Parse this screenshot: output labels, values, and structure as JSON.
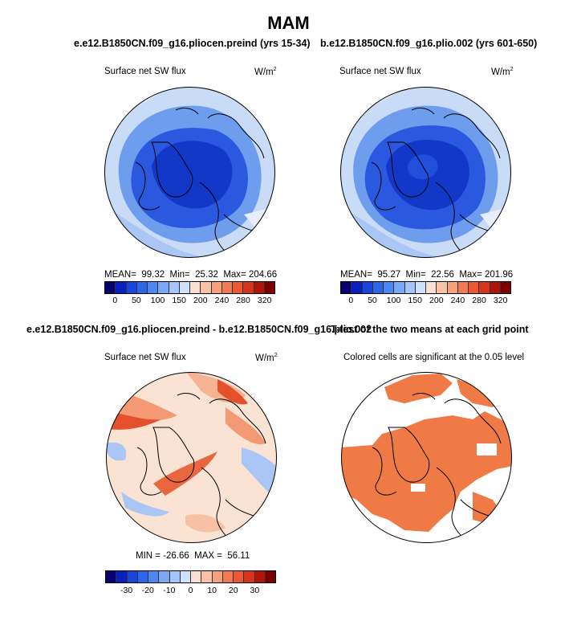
{
  "title": "MAM",
  "panels": [
    {
      "header": "e.e12.B1850CN.f09_g16.pliocen.preind (yrs 15-34)",
      "left_label": "Surface net SW flux",
      "units_base": "W/m",
      "units_sup": "2",
      "stats": {
        "mean_label": "MEAN=",
        "mean": "99.32",
        "min_label": "Min=",
        "min": "25.32",
        "max_label": "Max=",
        "max": "204.66"
      }
    },
    {
      "header": "b.e12.B1850CN.f09_g16.plio.002 (yrs 601-650)",
      "left_label": "Surface net SW flux",
      "units_base": "W/m",
      "units_sup": "2",
      "stats": {
        "mean_label": "MEAN=",
        "mean": "95.27",
        "min_label": "Min=",
        "min": "22.56",
        "max_label": "Max=",
        "max": "201.96"
      }
    },
    {
      "header": "e.e12.B1850CN.f09_g16.pliocen.preind - b.e12.B1850CN.f09_g16.plio.002",
      "left_label": "Surface net SW flux",
      "units_base": "W/m",
      "units_sup": "2",
      "stats_text": "MIN = -26.66  MAX =  56.11"
    },
    {
      "header": "T-test of the two means at each grid point",
      "subtitle": "Colored cells are significant at the 0.05 level"
    }
  ],
  "colorbars": {
    "absolute": {
      "labels": [
        "0",
        "50",
        "100",
        "150",
        "200",
        "240",
        "280",
        "320"
      ],
      "colors": [
        "#08006e",
        "#0a1fc0",
        "#1846dc",
        "#2d66ea",
        "#4f87f0",
        "#7aa8f5",
        "#a5c5fa",
        "#cfe0fc",
        "#fbe0d2",
        "#f9c2a6",
        "#f6a07c",
        "#f27b56",
        "#ec5832",
        "#d6341c",
        "#b01608",
        "#7c0000"
      ]
    },
    "difference": {
      "labels": [
        "-30",
        "-20",
        "-10",
        "0",
        "10",
        "20",
        "30"
      ],
      "colors": [
        "#08006e",
        "#0a1fc0",
        "#1846dc",
        "#2d66ea",
        "#4f87f0",
        "#7aa8f5",
        "#a5c5fa",
        "#cfe0fc",
        "#fbe0d2",
        "#f9c2a6",
        "#f6a07c",
        "#f27b56",
        "#ec5832",
        "#d6341c",
        "#b01608",
        "#7c0000"
      ]
    }
  },
  "map_colors": {
    "ocean_light": "#c9dcf7",
    "ocean_mid": "#6f9ded",
    "deep": "#1f4fdc",
    "deepest": "#0f2fc6",
    "diff_base": "#fbe3d3",
    "diff_warm": "#f39a74",
    "diff_hot": "#e4502b",
    "diff_cool": "#a9c6f5",
    "sig_fill": "#ef7a45"
  }
}
